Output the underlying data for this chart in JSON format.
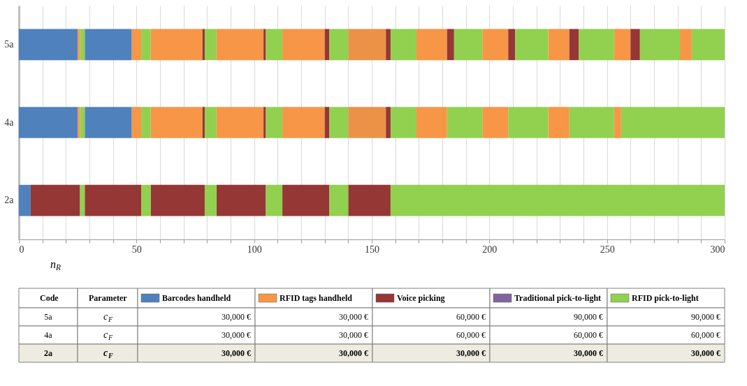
{
  "chart_data": {
    "type": "bar",
    "orientation": "horizontal",
    "xlabel": "n$_{R}$",
    "categories": [
      "5a",
      "4a",
      "2a"
    ],
    "xlim": [
      0,
      300
    ],
    "xticks": [
      0,
      {
        "value": 10,
        "label": null
      },
      {
        "value": 20,
        "label": null
      },
      {
        "value": 30,
        "label": null
      },
      {
        "value": 40,
        "label": null
      },
      50,
      {
        "value": 60,
        "label": null
      },
      {
        "value": 70,
        "label": null
      },
      {
        "value": 80,
        "label": null
      },
      {
        "value": 90,
        "label": null
      },
      100,
      {
        "value": 110,
        "label": null
      },
      {
        "value": 120,
        "label": null
      },
      {
        "value": 130,
        "label": null
      },
      {
        "value": 140,
        "label": null
      },
      150,
      {
        "value": 160,
        "label": null
      },
      {
        "value": 170,
        "label": null
      },
      {
        "value": 180,
        "label": null
      },
      {
        "value": 190,
        "label": null
      },
      200,
      {
        "value": 210,
        "label": null
      },
      {
        "value": 220,
        "label": null
      },
      {
        "value": 230,
        "label": null
      },
      {
        "value": 240,
        "label": null
      },
      250,
      {
        "value": 260,
        "label": null
      },
      {
        "value": 270,
        "label": null
      },
      {
        "value": 280,
        "label": null
      },
      {
        "value": 290,
        "label": null
      },
      300
    ],
    "grid": "x",
    "legend": "bottom",
    "series": [
      {
        "name": "Barcodes handheld",
        "color": "#4f81bd",
        "base": [
          0,
          0,
          0
        ],
        "values": [
          25,
          25,
          5
        ]
      },
      {
        "color": "#4f81bd",
        "base": [
          28,
          28,
          null
        ],
        "values": [
          20,
          20,
          null
        ]
      },
      {
        "name": "RFID tags handheld",
        "color": "#f79646",
        "base": [
          25,
          25,
          null
        ],
        "values": [
          1,
          1,
          null
        ]
      },
      {
        "color": "#f79646",
        "base": [
          48,
          48,
          null
        ],
        "values": [
          4,
          4,
          null
        ]
      },
      {
        "color": "#f79646",
        "base": [
          56,
          56,
          null
        ],
        "values": [
          22,
          22,
          null
        ]
      },
      {
        "color": "#f79646",
        "base": [
          84,
          84,
          null
        ],
        "values": [
          20,
          20,
          null
        ]
      },
      {
        "color": "#f79646",
        "base": [
          112,
          112,
          null
        ],
        "values": [
          18,
          18,
          null
        ]
      },
      {
        "color": "#eb9247",
        "base": [
          140,
          140,
          null
        ],
        "values": [
          16,
          16,
          null
        ]
      },
      {
        "color": "#f79646",
        "base": [
          169,
          169,
          null
        ],
        "values": [
          13,
          13,
          null
        ]
      },
      {
        "color": "#f79646",
        "base": [
          197,
          197,
          null
        ],
        "values": [
          11,
          11,
          null
        ]
      },
      {
        "color": "#f79646",
        "base": [
          225,
          225,
          null
        ],
        "values": [
          9,
          9,
          null
        ]
      },
      {
        "color": "#f79646",
        "base": [
          253,
          253,
          null
        ],
        "values": [
          7,
          3,
          null
        ]
      },
      {
        "color": "#f79646",
        "base": [
          281,
          null,
          null
        ],
        "values": [
          5,
          null,
          null
        ]
      },
      {
        "name": "Voice picking",
        "color": "#953735",
        "base": [
          78,
          78,
          5
        ],
        "values": [
          1,
          1,
          21
        ]
      },
      {
        "color": "#953735",
        "base": [
          104,
          104,
          28
        ],
        "values": [
          1,
          1,
          24
        ]
      },
      {
        "color": "#953735",
        "base": [
          130,
          130,
          56
        ],
        "values": [
          2,
          2,
          23
        ]
      },
      {
        "color": "#953735",
        "base": [
          156,
          156,
          84
        ],
        "values": [
          2,
          2,
          21
        ]
      },
      {
        "color": "#953735",
        "base": [
          182,
          null,
          112
        ],
        "values": [
          3,
          null,
          20
        ]
      },
      {
        "color": "#953735",
        "base": [
          208,
          null,
          140
        ],
        "values": [
          3,
          null,
          18
        ]
      },
      {
        "color": "#953735",
        "base": [
          234,
          null,
          null
        ],
        "values": [
          4,
          null,
          null
        ]
      },
      {
        "color": "#953735",
        "base": [
          260,
          null,
          null
        ],
        "values": [
          4,
          null,
          null
        ]
      },
      {
        "name": "Traditional pick-to-light",
        "color": "#8064a2",
        "base": [
          null,
          null,
          null
        ],
        "values": [
          null,
          null,
          null
        ]
      },
      {
        "name": "RFID pick-to-light",
        "color": "#92d050",
        "base": [
          26,
          26,
          26
        ],
        "values": [
          2,
          2,
          2
        ]
      },
      {
        "color": "#92d050",
        "base": [
          52,
          52,
          52
        ],
        "values": [
          4,
          4,
          4
        ]
      },
      {
        "color": "#92d050",
        "base": [
          79,
          79,
          79
        ],
        "values": [
          5,
          5,
          5
        ]
      },
      {
        "color": "#92d050",
        "base": [
          105,
          105,
          105
        ],
        "values": [
          7,
          7,
          7
        ]
      },
      {
        "color": "#92d050",
        "base": [
          132,
          132,
          132
        ],
        "values": [
          8,
          8,
          8
        ]
      },
      {
        "color": "#92d050",
        "base": [
          158,
          158,
          158
        ],
        "values": [
          11,
          11,
          142
        ]
      },
      {
        "color": "#92d050",
        "base": [
          185,
          182,
          null
        ],
        "values": [
          12,
          15,
          null
        ]
      },
      {
        "color": "#92d050",
        "base": [
          211,
          208,
          null
        ],
        "values": [
          14,
          17,
          null
        ]
      },
      {
        "color": "#92d050",
        "base": [
          238,
          234,
          null
        ],
        "values": [
          15,
          19,
          null
        ]
      },
      {
        "color": "#92d050",
        "base": [
          264,
          256,
          null
        ],
        "values": [
          17,
          44,
          null
        ]
      },
      {
        "color": "#92d050",
        "base": [
          286,
          null,
          null
        ],
        "values": [
          14,
          null,
          null
        ]
      }
    ],
    "annotations": [
      "Code",
      "Parameter",
      "5a",
      "c$_{F}$",
      "30,000 €",
      "30,000 €",
      "60,000 €",
      "90,000 €",
      "90,000 €",
      "4a",
      "c$_{F}$",
      "30,000 €",
      "30,000 €",
      "60,000 €",
      "60,000 €",
      "60,000 €",
      "2a",
      "c$_{F}$",
      "30,000 €",
      "30,000 €",
      "30,000 €",
      "30,000 €",
      "30,000 €"
    ]
  }
}
